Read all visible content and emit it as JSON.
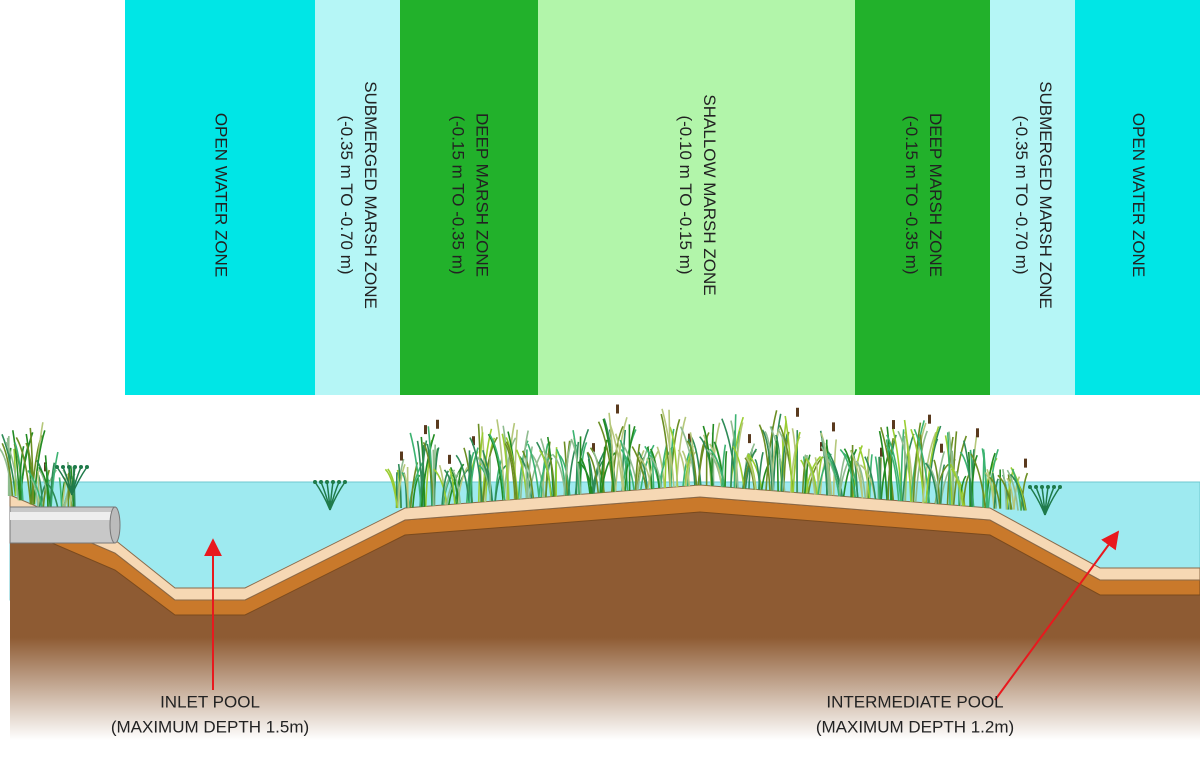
{
  "zones": [
    {
      "label": [
        "OPEN WATER ZONE"
      ]
    },
    {
      "label": [
        "SUBMERGED MARSH ZONE",
        "(-0.35 m TO -0.70 m)"
      ]
    },
    {
      "label": [
        "DEEP MARSH ZONE",
        "(-0.15 m TO -0.35 m)"
      ]
    },
    {
      "label": [
        "SHALLOW MARSH ZONE",
        "(-0.10 m TO -0.15 m)"
      ]
    },
    {
      "label": [
        "DEEP MARSH ZONE",
        "(-0.15 m TO -0.35 m)"
      ]
    },
    {
      "label": [
        "SUBMERGED MARSH ZONE",
        "(-0.35 m TO -0.70 m)"
      ]
    },
    {
      "label": [
        "OPEN WATER ZONE"
      ]
    }
  ],
  "annotations": [
    {
      "label": [
        "INLET POOL",
        "(MAXIMUM DEPTH 1.5m)"
      ]
    },
    {
      "label": [
        "INTERMEDIATE POOL",
        "(MAXIMUM DEPTH 1.2m)"
      ]
    }
  ]
}
